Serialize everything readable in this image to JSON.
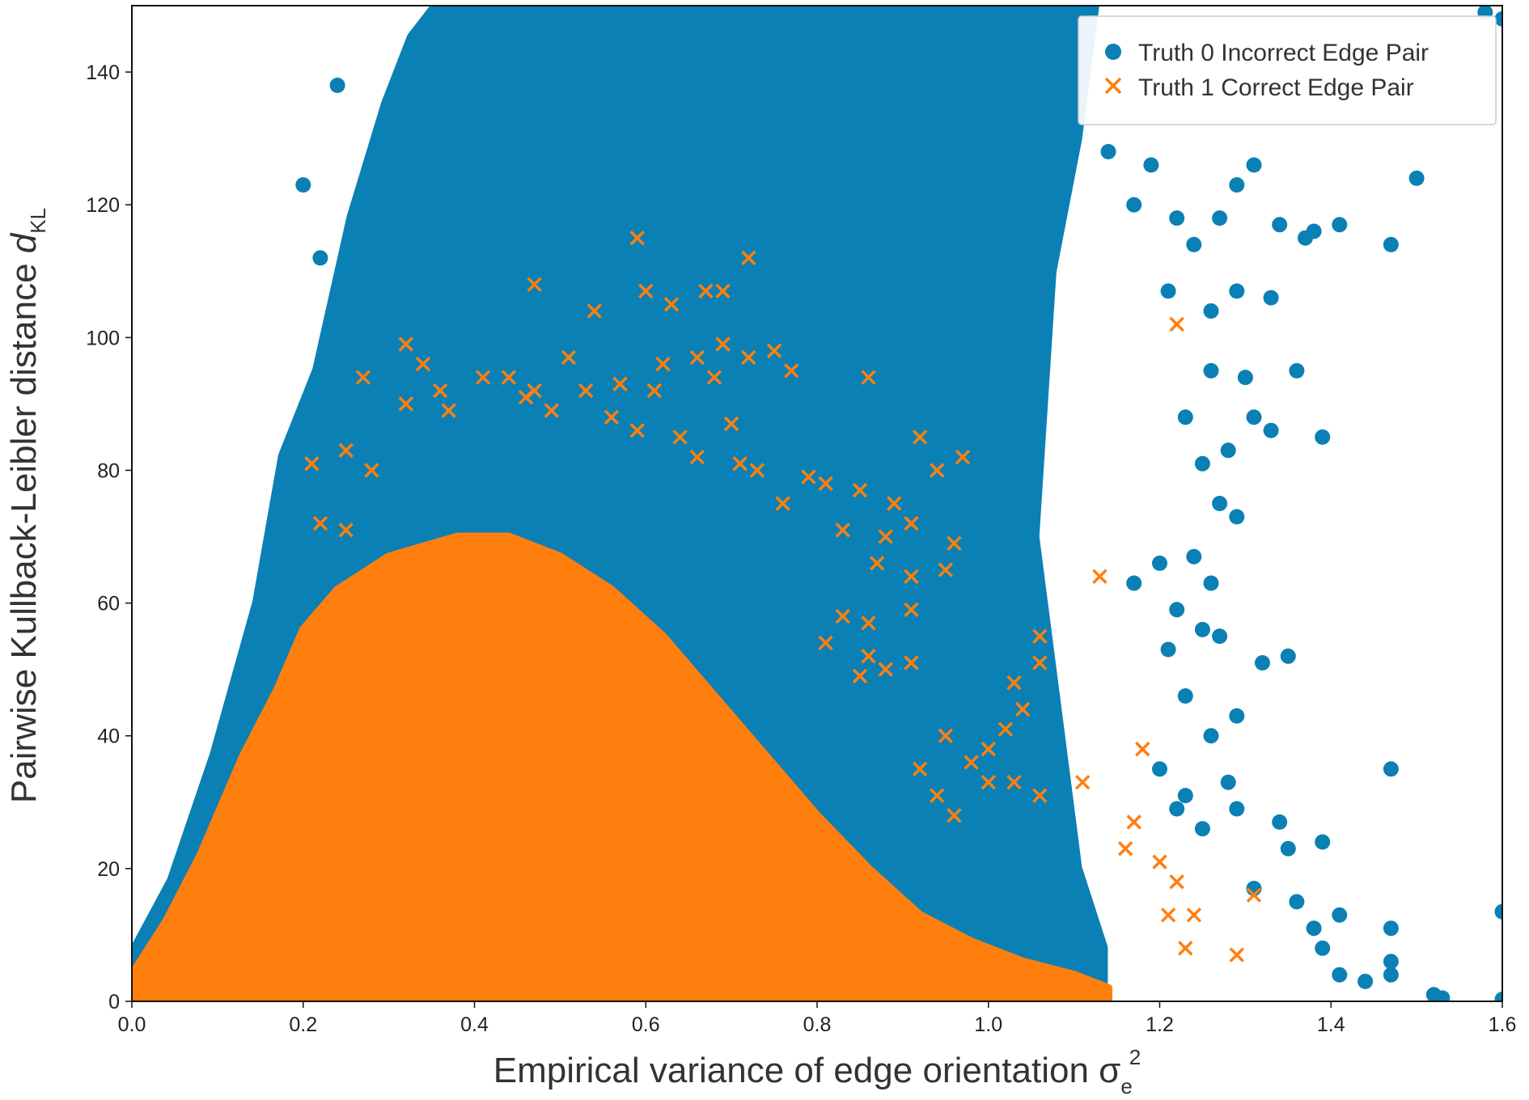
{
  "chart_data": {
    "type": "scatter",
    "title": "",
    "xlabel": {
      "main": "Empirical variance of edge orientation σ",
      "subscript": "e",
      "superscript": "2"
    },
    "ylabel": {
      "main": "Pairwise Kullback-Leibler distance ",
      "variable": "d",
      "subscript": "KL"
    },
    "xlim": [
      0.0,
      1.6
    ],
    "ylim": [
      0,
      150
    ],
    "xticks": [
      "0.0",
      "0.2",
      "0.4",
      "0.6",
      "0.8",
      "1.0",
      "1.2",
      "1.4",
      "1.6"
    ],
    "yticks": [
      "0",
      "20",
      "40",
      "60",
      "80",
      "100",
      "120",
      "140"
    ],
    "grid": false,
    "legend_position": "top-right",
    "series": [
      {
        "name": "Truth 0 Incorrect Edge Pair",
        "marker": "circle",
        "color": "#0a80b5",
        "dense_region_outline": [
          [
            0.0,
            0
          ],
          [
            0.0,
            6
          ],
          [
            0.05,
            18
          ],
          [
            0.1,
            37
          ],
          [
            0.15,
            60
          ],
          [
            0.18,
            82
          ],
          [
            0.22,
            95
          ],
          [
            0.26,
            118
          ],
          [
            0.3,
            135
          ],
          [
            0.33,
            145
          ],
          [
            0.36,
            150
          ],
          [
            1.12,
            150
          ],
          [
            1.1,
            130
          ],
          [
            1.07,
            110
          ],
          [
            1.05,
            70
          ],
          [
            1.08,
            40
          ],
          [
            1.1,
            20
          ],
          [
            1.13,
            8
          ],
          [
            1.13,
            3
          ],
          [
            1.1,
            0
          ]
        ],
        "sparse_points": [
          [
            0.24,
            138
          ],
          [
            0.2,
            123
          ],
          [
            0.22,
            112
          ],
          [
            1.14,
            128
          ],
          [
            1.17,
            120
          ],
          [
            1.19,
            126
          ],
          [
            1.22,
            118
          ],
          [
            1.24,
            114
          ],
          [
            1.27,
            118
          ],
          [
            1.29,
            123
          ],
          [
            1.31,
            126
          ],
          [
            1.34,
            117
          ],
          [
            1.37,
            115
          ],
          [
            1.38,
            116
          ],
          [
            1.41,
            117
          ],
          [
            1.5,
            124
          ],
          [
            1.47,
            114
          ],
          [
            1.21,
            107
          ],
          [
            1.26,
            104
          ],
          [
            1.29,
            107
          ],
          [
            1.33,
            106
          ],
          [
            1.36,
            95
          ],
          [
            1.3,
            94
          ],
          [
            1.26,
            95
          ],
          [
            1.33,
            86
          ],
          [
            1.39,
            85
          ],
          [
            1.28,
            83
          ],
          [
            1.31,
            88
          ],
          [
            1.23,
            88
          ],
          [
            1.25,
            81
          ],
          [
            1.27,
            75
          ],
          [
            1.29,
            73
          ],
          [
            1.24,
            67
          ],
          [
            1.2,
            66
          ],
          [
            1.17,
            63
          ],
          [
            1.22,
            59
          ],
          [
            1.26,
            63
          ],
          [
            1.25,
            56
          ],
          [
            1.27,
            55
          ],
          [
            1.21,
            53
          ],
          [
            1.32,
            51
          ],
          [
            1.35,
            52
          ],
          [
            1.23,
            46
          ],
          [
            1.29,
            43
          ],
          [
            1.26,
            40
          ],
          [
            1.28,
            33
          ],
          [
            1.29,
            29
          ],
          [
            1.34,
            27
          ],
          [
            1.35,
            23
          ],
          [
            1.39,
            24
          ],
          [
            1.47,
            35
          ],
          [
            1.31,
            17
          ],
          [
            1.36,
            15
          ],
          [
            1.41,
            13
          ],
          [
            1.38,
            11
          ],
          [
            1.47,
            11
          ],
          [
            1.39,
            8
          ],
          [
            1.47,
            6
          ],
          [
            1.41,
            4
          ],
          [
            1.47,
            4
          ],
          [
            1.44,
            3
          ],
          [
            1.52,
            1
          ],
          [
            1.53,
            0.5
          ],
          [
            1.6,
            13.5
          ],
          [
            1.6,
            0.3
          ],
          [
            1.6,
            148
          ],
          [
            1.58,
            149
          ],
          [
            1.25,
            26
          ],
          [
            1.22,
            29
          ],
          [
            1.2,
            35
          ],
          [
            1.23,
            31
          ]
        ]
      },
      {
        "name": "Truth 1 Correct Edge Pair",
        "marker": "x",
        "color": "#ff7f0e",
        "dense_region_outline": [
          [
            0.0,
            0
          ],
          [
            0.0,
            4
          ],
          [
            0.04,
            12
          ],
          [
            0.08,
            22
          ],
          [
            0.13,
            37
          ],
          [
            0.17,
            47
          ],
          [
            0.2,
            56
          ],
          [
            0.24,
            62
          ],
          [
            0.3,
            67
          ],
          [
            0.38,
            70
          ],
          [
            0.44,
            70
          ],
          [
            0.5,
            67
          ],
          [
            0.56,
            62
          ],
          [
            0.62,
            55
          ],
          [
            0.68,
            46
          ],
          [
            0.74,
            37
          ],
          [
            0.8,
            28
          ],
          [
            0.86,
            20
          ],
          [
            0.92,
            13
          ],
          [
            0.98,
            9
          ],
          [
            1.04,
            6
          ],
          [
            1.1,
            4
          ],
          [
            1.14,
            2
          ],
          [
            1.14,
            0
          ]
        ],
        "sparse_points": [
          [
            0.59,
            115
          ],
          [
            0.72,
            112
          ],
          [
            0.47,
            108
          ],
          [
            0.6,
            107
          ],
          [
            0.63,
            105
          ],
          [
            0.67,
            107
          ],
          [
            0.69,
            107
          ],
          [
            0.54,
            104
          ],
          [
            0.32,
            99
          ],
          [
            0.44,
            94
          ],
          [
            0.51,
            97
          ],
          [
            0.62,
            96
          ],
          [
            0.66,
            97
          ],
          [
            0.75,
            98
          ],
          [
            0.77,
            95
          ],
          [
            0.86,
            94
          ],
          [
            0.27,
            94
          ],
          [
            0.36,
            92
          ],
          [
            0.41,
            94
          ],
          [
            0.34,
            96
          ],
          [
            0.47,
            92
          ],
          [
            0.53,
            92
          ],
          [
            0.57,
            93
          ],
          [
            0.61,
            92
          ],
          [
            0.69,
            99
          ],
          [
            0.72,
            97
          ],
          [
            0.68,
            94
          ],
          [
            0.32,
            90
          ],
          [
            0.37,
            89
          ],
          [
            0.46,
            91
          ],
          [
            0.49,
            89
          ],
          [
            0.56,
            88
          ],
          [
            0.59,
            86
          ],
          [
            0.64,
            85
          ],
          [
            0.7,
            87
          ],
          [
            0.66,
            82
          ],
          [
            0.71,
            81
          ],
          [
            0.73,
            80
          ],
          [
            0.92,
            85
          ],
          [
            0.94,
            80
          ],
          [
            0.97,
            82
          ],
          [
            0.25,
            83
          ],
          [
            0.21,
            81
          ],
          [
            0.28,
            80
          ],
          [
            0.79,
            79
          ],
          [
            0.81,
            78
          ],
          [
            0.76,
            75
          ],
          [
            0.85,
            77
          ],
          [
            0.89,
            75
          ],
          [
            0.91,
            72
          ],
          [
            0.22,
            72
          ],
          [
            0.25,
            71
          ],
          [
            0.88,
            70
          ],
          [
            0.83,
            71
          ],
          [
            0.87,
            66
          ],
          [
            0.91,
            64
          ],
          [
            0.96,
            69
          ],
          [
            0.95,
            65
          ],
          [
            0.91,
            59
          ],
          [
            0.83,
            58
          ],
          [
            0.86,
            57
          ],
          [
            0.81,
            54
          ],
          [
            0.86,
            52
          ],
          [
            0.88,
            50
          ],
          [
            0.91,
            51
          ],
          [
            0.85,
            49
          ],
          [
            1.03,
            48
          ],
          [
            1.06,
            55
          ],
          [
            1.06,
            51
          ],
          [
            1.13,
            64
          ],
          [
            1.04,
            44
          ],
          [
            1.02,
            41
          ],
          [
            0.98,
            36
          ],
          [
            0.95,
            40
          ],
          [
            1.0,
            38
          ],
          [
            0.92,
            35
          ],
          [
            0.94,
            31
          ],
          [
            0.96,
            28
          ],
          [
            1.0,
            33
          ],
          [
            1.03,
            33
          ],
          [
            1.06,
            31
          ],
          [
            1.11,
            33
          ],
          [
            1.18,
            38
          ],
          [
            1.17,
            27
          ],
          [
            1.16,
            23
          ],
          [
            1.2,
            21
          ],
          [
            1.22,
            18
          ],
          [
            1.21,
            13
          ],
          [
            1.24,
            13
          ],
          [
            1.23,
            8
          ],
          [
            1.29,
            7
          ],
          [
            1.31,
            16
          ],
          [
            1.22,
            102
          ]
        ]
      }
    ]
  }
}
